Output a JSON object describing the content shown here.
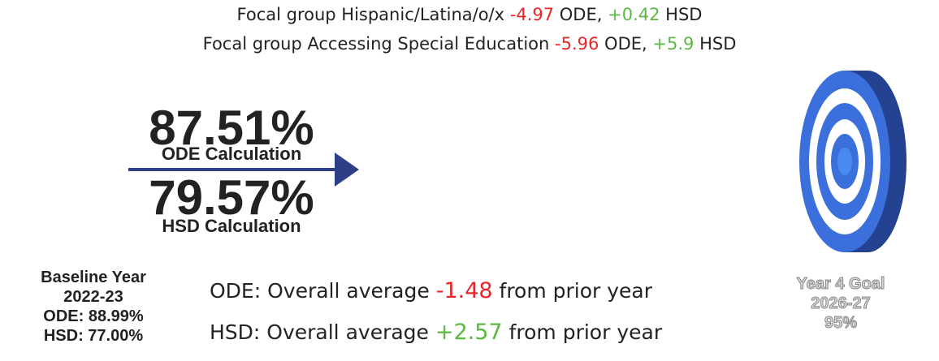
{
  "focal_groups": [
    {
      "label": "Focal group Hispanic/Latina/o/x",
      "ode": "-4.97",
      "ode_label": "ODE,",
      "hsd": "+0.42",
      "hsd_label": "HSD"
    },
    {
      "label": "Focal group Accessing Special Education",
      "ode": "-5.96",
      "ode_label": "ODE,",
      "hsd": "+5.9",
      "hsd_label": "HSD"
    }
  ],
  "current": {
    "ode_value": "87.51%",
    "ode_label": "ODE Calculation",
    "hsd_value": "79.57%",
    "hsd_label": "HSD Calculation"
  },
  "baseline": {
    "title": "Baseline Year",
    "year": "2022-23",
    "ode": "ODE: 88.99%",
    "hsd": "HSD: 77.00%"
  },
  "averages": [
    {
      "label": "ODE: Overall average",
      "change": "-1.48",
      "suffix": "from prior year"
    },
    {
      "label": "HSD: Overall average",
      "change": "+2.57",
      "suffix": "from prior year"
    }
  ],
  "goal": {
    "title": "Year 4 Goal",
    "year": "2026-27",
    "value": "95%"
  }
}
